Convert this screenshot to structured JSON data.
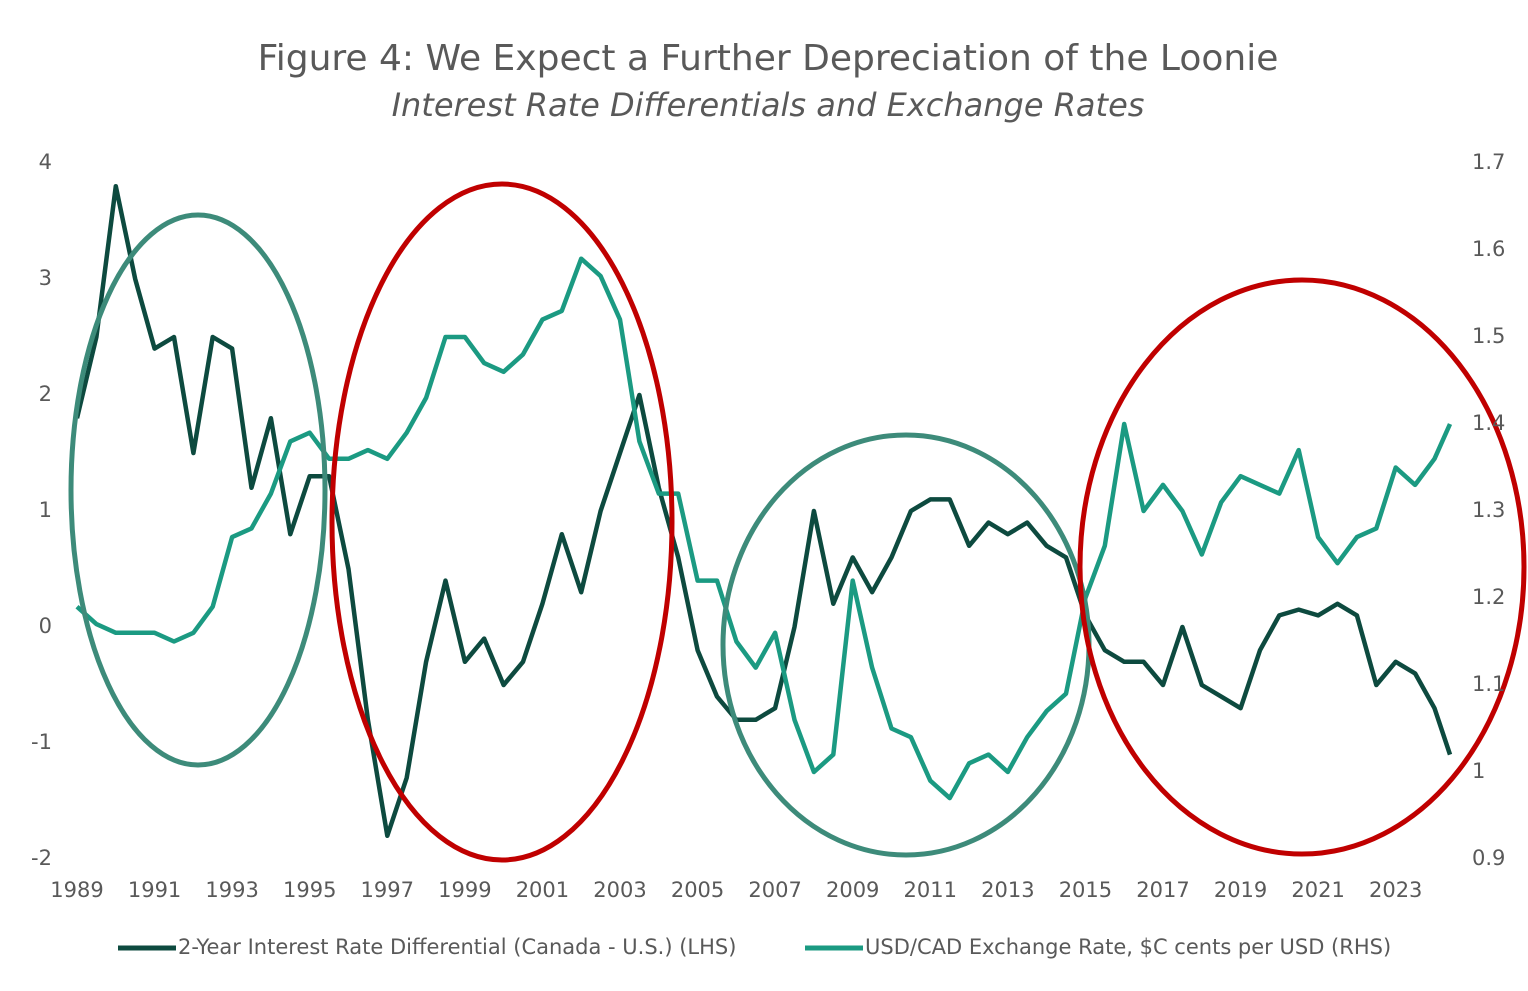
{
  "chart_data": {
    "type": "line",
    "title": "Figure 4: We Expect a Further Depreciation of the Loonie",
    "subtitle": "Interest Rate Differentials and Exchange Rates",
    "x": [
      1989.0,
      1989.5,
      1990.0,
      1990.5,
      1991.0,
      1991.5,
      1992.0,
      1992.5,
      1993.0,
      1993.5,
      1994.0,
      1994.5,
      1995.0,
      1995.5,
      1996.0,
      1996.5,
      1997.0,
      1997.5,
      1998.0,
      1998.5,
      1999.0,
      1999.5,
      2000.0,
      2000.5,
      2001.0,
      2001.5,
      2002.0,
      2002.5,
      2003.0,
      2003.5,
      2004.0,
      2004.5,
      2005.0,
      2005.5,
      2006.0,
      2006.5,
      2007.0,
      2007.5,
      2008.0,
      2008.5,
      2009.0,
      2009.5,
      2010.0,
      2010.5,
      2011.0,
      2011.5,
      2012.0,
      2012.5,
      2013.0,
      2013.5,
      2014.0,
      2014.5,
      2015.0,
      2015.5,
      2016.0,
      2016.5,
      2017.0,
      2017.5,
      2018.0,
      2018.5,
      2019.0,
      2019.5,
      2020.0,
      2020.5,
      2021.0,
      2021.5,
      2022.0,
      2022.5,
      2023.0,
      2023.5,
      2024.0,
      2024.4
    ],
    "xlim": [
      1989,
      2024.4
    ],
    "xticks": [
      1989,
      1991,
      1993,
      1995,
      1997,
      1999,
      2001,
      2003,
      2005,
      2007,
      2009,
      2011,
      2013,
      2015,
      2017,
      2019,
      2021,
      2023
    ],
    "ylim": [
      -2,
      4
    ],
    "yticks": [
      -2,
      -1,
      0,
      1,
      2,
      3,
      4
    ],
    "y2lim": [
      0.9,
      1.7
    ],
    "y2ticks": [
      0.9,
      1,
      1.1,
      1.2,
      1.3,
      1.4,
      1.5,
      1.6,
      1.7
    ],
    "grid": false,
    "legend": "bottom",
    "series": [
      {
        "name": "2-Year Interest Rate Differential (Canada - U.S.) (LHS)",
        "color": "#0d4a3f",
        "axis": "y",
        "values": [
          1.8,
          2.5,
          3.8,
          3.0,
          2.4,
          2.5,
          1.5,
          2.5,
          2.4,
          1.2,
          1.8,
          0.8,
          1.3,
          1.3,
          0.5,
          -0.8,
          -1.8,
          -1.3,
          -0.3,
          0.4,
          -0.3,
          -0.1,
          -0.5,
          -0.3,
          0.2,
          0.8,
          0.3,
          1.0,
          1.5,
          2.0,
          1.2,
          0.6,
          -0.2,
          -0.6,
          -0.8,
          -0.8,
          -0.7,
          0.0,
          1.0,
          0.2,
          0.6,
          0.3,
          0.6,
          1.0,
          1.1,
          1.1,
          0.7,
          0.9,
          0.8,
          0.9,
          0.7,
          0.6,
          0.1,
          -0.2,
          -0.3,
          -0.3,
          -0.5,
          0.0,
          -0.5,
          -0.6,
          -0.7,
          -0.2,
          0.1,
          0.15,
          0.1,
          0.2,
          0.1,
          -0.5,
          -0.3,
          -0.4,
          -0.7,
          -1.1
        ]
      },
      {
        "name": "USD/CAD Exchange Rate, $C cents per USD (RHS)",
        "color": "#1b9a82",
        "axis": "y2",
        "values": [
          1.19,
          1.17,
          1.16,
          1.16,
          1.16,
          1.15,
          1.16,
          1.19,
          1.27,
          1.28,
          1.32,
          1.38,
          1.39,
          1.36,
          1.36,
          1.37,
          1.36,
          1.39,
          1.43,
          1.5,
          1.5,
          1.47,
          1.46,
          1.48,
          1.52,
          1.53,
          1.59,
          1.57,
          1.52,
          1.38,
          1.32,
          1.32,
          1.22,
          1.22,
          1.15,
          1.12,
          1.16,
          1.06,
          1.0,
          1.02,
          1.22,
          1.12,
          1.05,
          1.04,
          0.99,
          0.97,
          1.01,
          1.02,
          1.0,
          1.04,
          1.07,
          1.09,
          1.2,
          1.26,
          1.4,
          1.3,
          1.33,
          1.3,
          1.25,
          1.31,
          1.34,
          1.33,
          1.32,
          1.37,
          1.27,
          1.24,
          1.27,
          1.28,
          1.35,
          1.33,
          1.36,
          1.4
        ]
      }
    ]
  }
}
